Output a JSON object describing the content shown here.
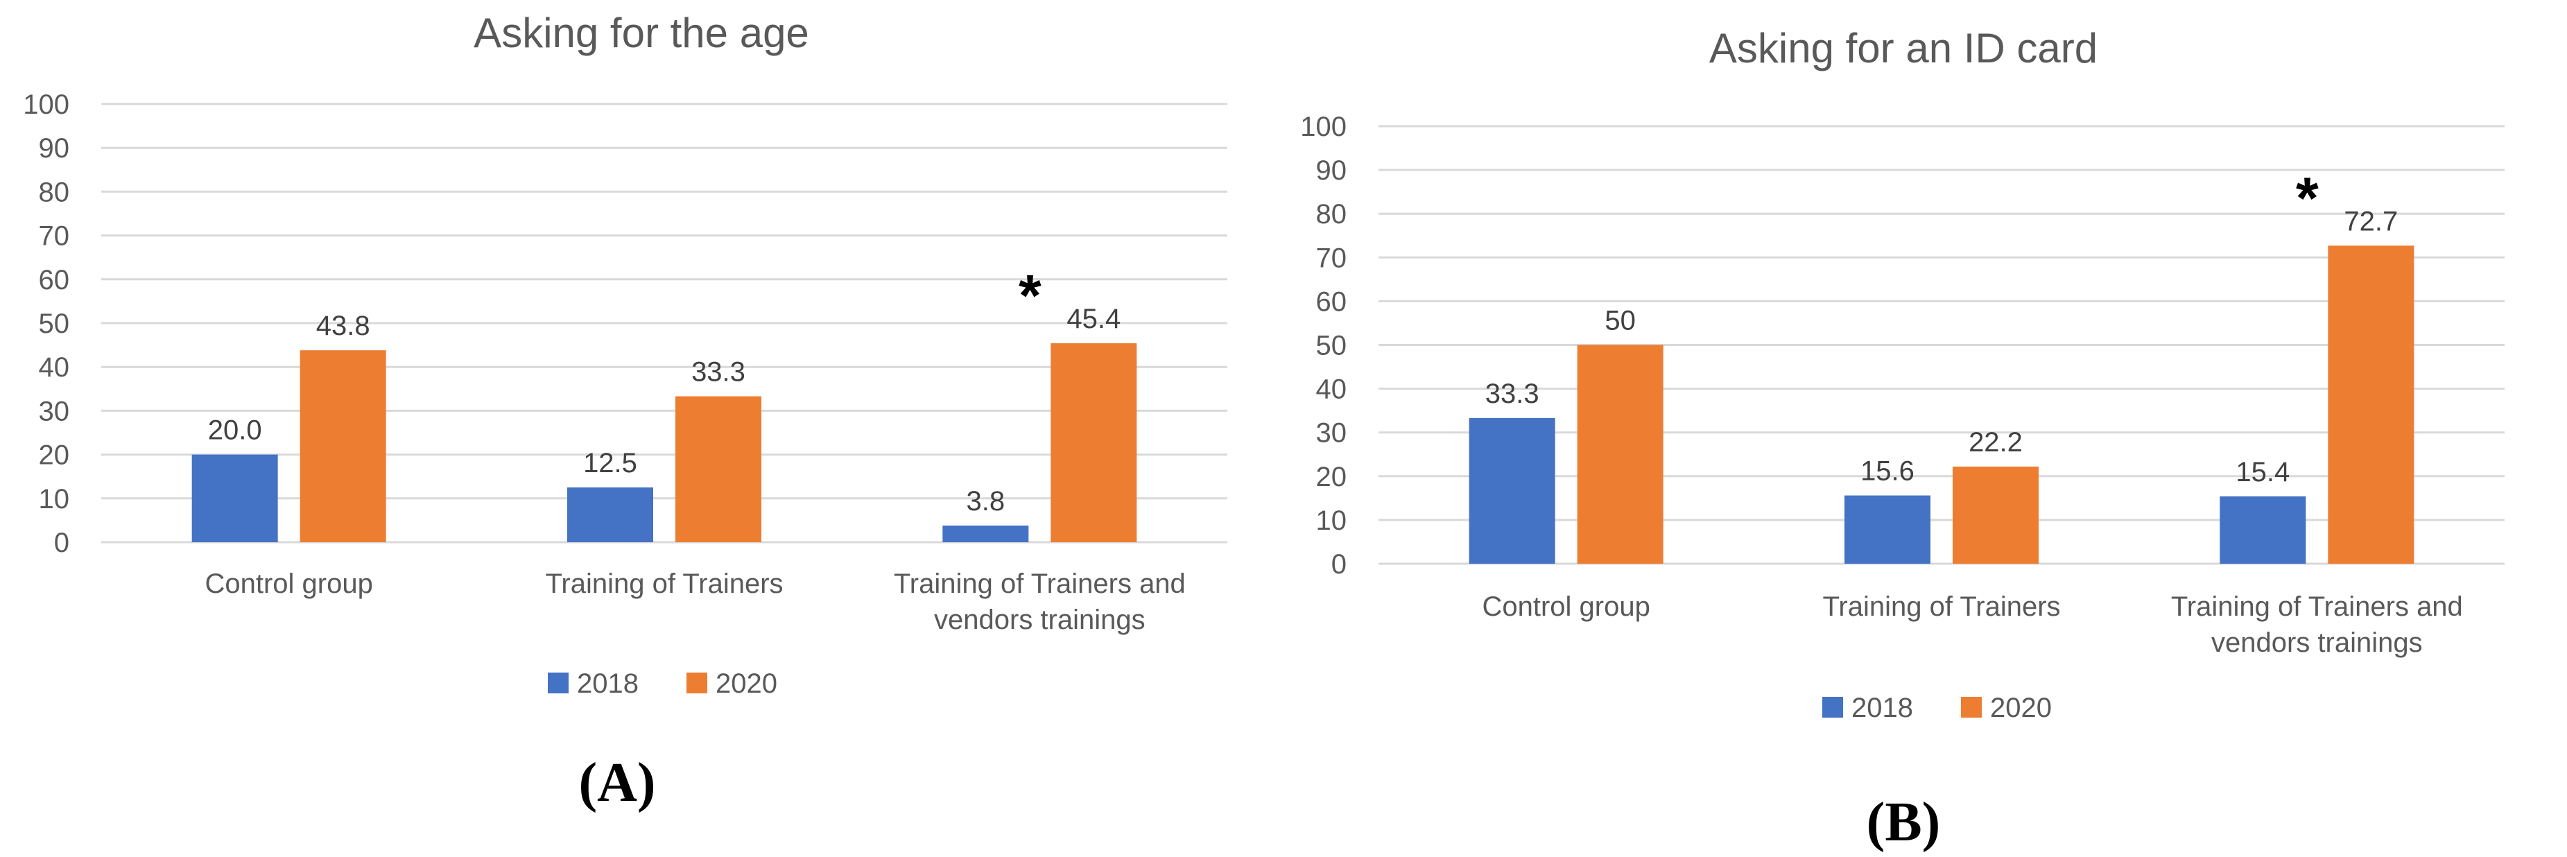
{
  "colors": {
    "s2018": "#4472C4",
    "s2020": "#ED7D31"
  },
  "chart_data": [
    {
      "type": "bar",
      "panel": "(A)",
      "title": "Asking for the age",
      "categories": [
        [
          "Control group"
        ],
        [
          "Training of Trainers"
        ],
        [
          "Training of Trainers and",
          "vendors trainings"
        ]
      ],
      "series": [
        {
          "name": "2018",
          "values": [
            20.0,
            12.5,
            3.8
          ],
          "labels": [
            "20.0",
            "12.5",
            "3.8"
          ]
        },
        {
          "name": "2020",
          "values": [
            43.8,
            33.3,
            45.4
          ],
          "labels": [
            "43.8",
            "33.3",
            "45.4"
          ]
        }
      ],
      "yticks": [
        "0",
        "10",
        "20",
        "30",
        "40",
        "50",
        "60",
        "70",
        "80",
        "90",
        "100"
      ],
      "ylim": [
        0,
        100
      ],
      "annotations": [
        {
          "text": "*",
          "category": 2,
          "series": "2020"
        }
      ],
      "legend": "bottom"
    },
    {
      "type": "bar",
      "panel": "(B)",
      "title": "Asking for an ID card",
      "categories": [
        [
          "Control group"
        ],
        [
          "Training of Trainers"
        ],
        [
          "Training of Trainers and",
          "vendors trainings"
        ]
      ],
      "series": [
        {
          "name": "2018",
          "values": [
            33.3,
            15.6,
            15.4
          ],
          "labels": [
            "33.3",
            "15.6",
            "15.4"
          ]
        },
        {
          "name": "2020",
          "values": [
            50,
            22.2,
            72.7
          ],
          "labels": [
            "50",
            "22.2",
            "72.7"
          ]
        }
      ],
      "yticks": [
        "0",
        "10",
        "20",
        "30",
        "40",
        "50",
        "60",
        "70",
        "80",
        "90",
        "100"
      ],
      "ylim": [
        0,
        100
      ],
      "annotations": [
        {
          "text": "*",
          "category": 2,
          "series": "2020"
        }
      ],
      "legend": "bottom"
    }
  ]
}
